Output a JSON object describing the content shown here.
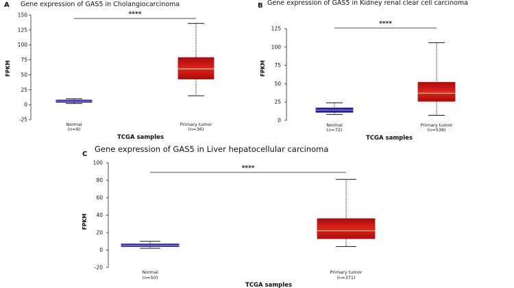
{
  "chart_data": [
    {
      "id": "A",
      "panel_label": "A",
      "type": "box",
      "title": "Gene expression of GAS5 in Cholangiocarcinoma",
      "ylabel": "FPKM",
      "xlabel": "TCGA samples",
      "ylim": [
        -25,
        150
      ],
      "yticks": [
        -25,
        0,
        25,
        50,
        75,
        100,
        125,
        150
      ],
      "significance": "****",
      "categories": [
        {
          "name": "Normal",
          "n": "(n=9)",
          "min": 2,
          "q1": 4,
          "median": 6,
          "q3": 8,
          "max": 10,
          "color": "#2a1f9a"
        },
        {
          "name": "Primary tumor",
          "n": "(n=36)",
          "min": 15,
          "q1": 43,
          "median": 60,
          "q3": 79,
          "max": 136,
          "color": "#c0100e"
        }
      ]
    },
    {
      "id": "B",
      "panel_label": "B",
      "type": "box",
      "title": "Gene expression of GAS5 in Kidney renal clear cell carcinoma",
      "ylabel": "FPKM",
      "xlabel": "TCGA samples",
      "ylim": [
        0,
        125
      ],
      "yticks": [
        0,
        25,
        50,
        75,
        100,
        125
      ],
      "significance": "****",
      "categories": [
        {
          "name": "Normal",
          "n": "(n=72)",
          "min": 8,
          "q1": 11,
          "median": 14,
          "q3": 17,
          "max": 24,
          "color": "#2a1f9a"
        },
        {
          "name": "Primary tumor",
          "n": "(n=538)",
          "min": 7,
          "q1": 26,
          "median": 37,
          "q3": 52,
          "max": 106,
          "color": "#c0100e"
        }
      ]
    },
    {
      "id": "C",
      "panel_label": "C",
      "type": "box",
      "title": "Gene expression of GAS5 in Liver hepatocellular carcinoma",
      "ylabel": "FPKM",
      "xlabel": "TCGA samples",
      "ylim": [
        -20,
        100
      ],
      "yticks": [
        -20,
        0,
        20,
        40,
        60,
        80,
        100
      ],
      "significance": "****",
      "categories": [
        {
          "name": "Normal",
          "n": "(n=50)",
          "min": 2,
          "q1": 4,
          "median": 5.5,
          "q3": 7,
          "max": 10,
          "color": "#2a1f9a"
        },
        {
          "name": "Primary tumor",
          "n": "(n=371)",
          "min": 4,
          "q1": 13,
          "median": 22,
          "q3": 36,
          "max": 81,
          "color": "#c0100e"
        }
      ]
    }
  ]
}
